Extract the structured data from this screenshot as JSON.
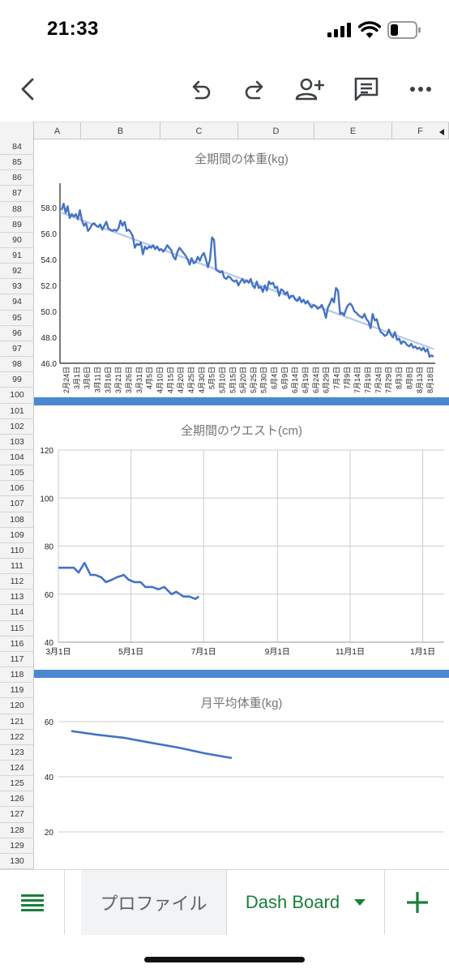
{
  "status": {
    "time": "21:33"
  },
  "toolbar": {
    "back_icon": "chevron-left-icon",
    "undo_icon": "undo-icon",
    "redo_icon": "redo-icon",
    "share_icon": "add-person-icon",
    "comment_icon": "comment-icon",
    "more_icon": "more-horizontal-icon"
  },
  "sheet": {
    "columns": [
      "A",
      "B",
      "C",
      "D",
      "E",
      "F"
    ],
    "rows": [
      "84",
      "85",
      "86",
      "87",
      "88",
      "89",
      "90",
      "91",
      "92",
      "93",
      "94",
      "95",
      "96",
      "97",
      "98",
      "99",
      "100",
      "101",
      "102",
      "103",
      "104",
      "105",
      "106",
      "107",
      "108",
      "109",
      "110",
      "111",
      "112",
      "113",
      "114",
      "115",
      "116",
      "117",
      "118",
      "119",
      "120",
      "121",
      "122",
      "123",
      "124",
      "125",
      "126",
      "127",
      "128",
      "129",
      "130"
    ]
  },
  "chart_data": [
    {
      "type": "line",
      "title": "全期間の体重(kg)",
      "ylim": [
        46.0,
        59.0
      ],
      "yticks": [
        "46.0",
        "48.0",
        "50.0",
        "52.0",
        "54.0",
        "56.0",
        "58.0"
      ],
      "x_tick_labels": [
        "2月24日",
        "3月1日",
        "3月6日",
        "3月11日",
        "3月16日",
        "3月21日",
        "3月26日",
        "3月31日",
        "4月5日",
        "4月10日",
        "4月15日",
        "4月20日",
        "4月25日",
        "4月30日",
        "5月5日",
        "5月10日",
        "5月15日",
        "5月20日",
        "5月25日",
        "5月30日",
        "6月4日",
        "6月9日",
        "6月14日",
        "6月19日",
        "6月24日",
        "6月29日",
        "7月4日",
        "7月9日",
        "7月14日",
        "7月19日",
        "7月24日",
        "7月29日",
        "8月3日",
        "8月8日",
        "8月13日",
        "8月18日"
      ],
      "series": [
        {
          "color": "#4472c4",
          "values": [
            57.8,
            58.3,
            57.6,
            58.1,
            57.2,
            57.5,
            57.3,
            57.5,
            57.1,
            57.8,
            57.0,
            56.6,
            56.8,
            56.2,
            56.4,
            56.7,
            56.8,
            56.6,
            56.5,
            56.7,
            56.3,
            56.6,
            56.9,
            56.4,
            56.3,
            56.2,
            56.3,
            56.2,
            56.4,
            57.0,
            56.6,
            56.9,
            56.2,
            56.3,
            56.1,
            55.8,
            54.9,
            55.2,
            55.1,
            55.3,
            54.4,
            55.0,
            54.8,
            55.0,
            54.9,
            55.1,
            54.8,
            55.0,
            54.7,
            54.8,
            54.6,
            54.8,
            55.1,
            54.9,
            54.7,
            54.2,
            54.0,
            54.6,
            54.9,
            54.7,
            54.5,
            54.3,
            54.0,
            53.6,
            54.1,
            53.7,
            53.8,
            54.2,
            53.9,
            54.3,
            54.5,
            54.0,
            53.4,
            54.0,
            55.7,
            55.5,
            53.2,
            53.1,
            53.0,
            53.1,
            52.6,
            52.5,
            52.7,
            52.6,
            52.4,
            52.3,
            52.4,
            52.0,
            52.3,
            52.5,
            52.2,
            52.4,
            52.2,
            52.5,
            52.0,
            51.8,
            52.3,
            51.8,
            51.9,
            51.5,
            52.0,
            51.6,
            52.3,
            52.1,
            52.2,
            51.8,
            51.9,
            51.2,
            51.7,
            51.6,
            51.3,
            51.5,
            51.0,
            51.2,
            51.2,
            50.9,
            50.8,
            51.1,
            50.7,
            50.9,
            50.6,
            50.8,
            50.5,
            50.3,
            50.5,
            50.4,
            50.2,
            50.3,
            50.5,
            50.1,
            49.5,
            50.3,
            50.6,
            51.0,
            50.7,
            51.8,
            51.6,
            49.8,
            49.9,
            49.7,
            50.2,
            50.5,
            50.6,
            50.4,
            50.0,
            49.9,
            49.7,
            49.6,
            49.5,
            49.8,
            49.4,
            49.2,
            48.7,
            49.8,
            49.3,
            49.4,
            48.8,
            48.4,
            48.3,
            48.1,
            48.2,
            48.6,
            48.2,
            48.0,
            48.4,
            47.8,
            47.9,
            47.5,
            47.7,
            47.6,
            47.4,
            47.3,
            47.5,
            47.2,
            47.3,
            47.1,
            47.2,
            47.0,
            47.2,
            46.9,
            47.1,
            46.5,
            46.6,
            46.5
          ]
        },
        {
          "color": "#b4c7e7",
          "values": [
            57.6,
            47.1
          ]
        }
      ]
    },
    {
      "type": "line",
      "title": "全期間のウエスト(cm)",
      "ylim": [
        40,
        120
      ],
      "yticks": [
        "40",
        "60",
        "80",
        "100",
        "120"
      ],
      "x_tick_labels": [
        "3月1日",
        "5月1日",
        "7月1日",
        "9月1日",
        "11月1日",
        "1月1日"
      ],
      "series": [
        {
          "color": "#4472c4",
          "x_days": [
            0,
            7,
            13,
            17,
            22,
            27,
            31,
            36,
            40,
            45,
            49,
            55,
            59,
            64,
            69,
            73,
            79,
            84,
            89,
            95,
            99,
            105,
            110,
            115,
            118
          ],
          "values": [
            71,
            71,
            71,
            69,
            73,
            68,
            68,
            67,
            65,
            66,
            67,
            68,
            66,
            65,
            65,
            63,
            63,
            62,
            63,
            60,
            61,
            59,
            59,
            58,
            59
          ]
        }
      ]
    },
    {
      "type": "line",
      "title": "月平均体重(kg)",
      "ylim": [
        0,
        60
      ],
      "yticks": [
        "20",
        "40",
        "60"
      ],
      "x_tick_labels": [],
      "series": [
        {
          "color": "#4472c4",
          "values": [
            56.6,
            55.2,
            54.1,
            52.3,
            50.6,
            48.5,
            46.8
          ]
        }
      ]
    }
  ],
  "tabs": {
    "menu_icon": "sheets-list-icon",
    "items": [
      {
        "label": "プロファイル",
        "active": false
      },
      {
        "label": "Dash Board",
        "active": true
      }
    ],
    "add_icon": "add-sheet-icon"
  },
  "colors": {
    "accent_green": "#188038",
    "divider_blue": "#4a89d2",
    "line_blue": "#4472c4",
    "trend": "#b4c7e7"
  }
}
